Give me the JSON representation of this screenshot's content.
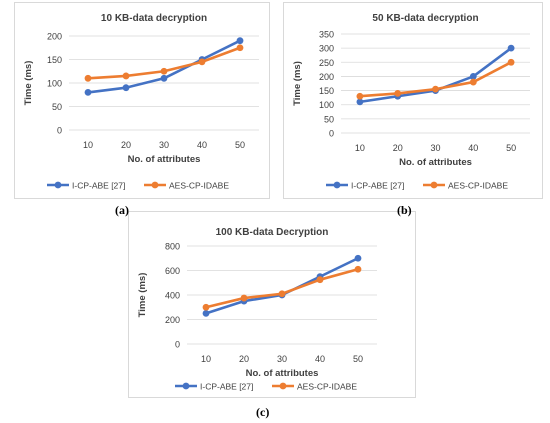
{
  "colors": {
    "series1": "#4472C4",
    "series2": "#ED7D31",
    "grid": "#d9d9d9",
    "text": "#404040"
  },
  "chart_data": [
    {
      "type": "line",
      "title": "10 KB-data decryption",
      "xlabel": "No. of attributes",
      "ylabel": "Time (ms)",
      "categories": [
        "10",
        "20",
        "30",
        "40",
        "50"
      ],
      "ylim": [
        0,
        200
      ],
      "yticks": [
        "0",
        "50",
        "100",
        "150",
        "200"
      ],
      "grid": true,
      "legend_position": "bottom",
      "series": [
        {
          "name": "I-CP-ABE [27]",
          "values": [
            80,
            90,
            110,
            150,
            190
          ]
        },
        {
          "name": "AES-CP-IDABE",
          "values": [
            110,
            115,
            125,
            145,
            175
          ]
        }
      ],
      "caption": "(a)"
    },
    {
      "type": "line",
      "title": "50 KB-data decryption",
      "xlabel": "No. of attributes",
      "ylabel": "Time (ms)",
      "categories": [
        "10",
        "20",
        "30",
        "40",
        "50"
      ],
      "ylim": [
        0,
        350
      ],
      "yticks": [
        "0",
        "50",
        "100",
        "150",
        "200",
        "250",
        "300",
        "350"
      ],
      "grid": true,
      "legend_position": "bottom",
      "series": [
        {
          "name": "I-CP-ABE [27]",
          "values": [
            110,
            130,
            150,
            200,
            300
          ]
        },
        {
          "name": "AES-CP-IDABE",
          "values": [
            130,
            140,
            155,
            180,
            250
          ]
        }
      ],
      "caption": "(b)"
    },
    {
      "type": "line",
      "title": "100 KB-data Decryption",
      "xlabel": "No. of attributes",
      "ylabel": "Time (ms)",
      "categories": [
        "10",
        "20",
        "30",
        "40",
        "50"
      ],
      "ylim": [
        0,
        800
      ],
      "yticks": [
        "0",
        "200",
        "400",
        "600",
        "800"
      ],
      "grid": true,
      "legend_position": "bottom",
      "series": [
        {
          "name": "I-CP-ABE [27]",
          "values": [
            250,
            350,
            400,
            550,
            700
          ]
        },
        {
          "name": "AES-CP-IDABE",
          "values": [
            300,
            375,
            410,
            525,
            610
          ]
        }
      ],
      "caption": "(c)"
    }
  ]
}
